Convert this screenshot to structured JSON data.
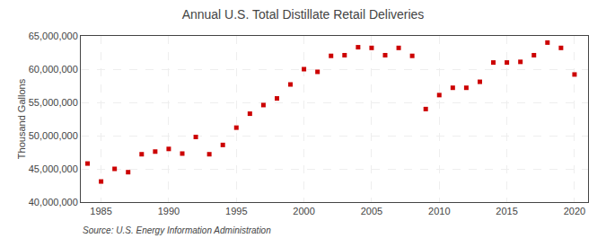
{
  "chart_data": {
    "type": "scatter",
    "title": "Annual U.S. Total Distillate Retail Deliveries",
    "ylabel": "Thousand Gallons",
    "annotations": [
      "Source: U.S. Energy Information Administration"
    ],
    "x": [
      1984,
      1985,
      1986,
      1987,
      1988,
      1989,
      1990,
      1991,
      1992,
      1993,
      1994,
      1995,
      1996,
      1997,
      1998,
      1999,
      2000,
      2001,
      2002,
      2003,
      2004,
      2005,
      2006,
      2007,
      2008,
      2009,
      2010,
      2011,
      2012,
      2013,
      2014,
      2015,
      2016,
      2017,
      2018,
      2019,
      2020
    ],
    "values": [
      45800000,
      43100000,
      45000000,
      44500000,
      47200000,
      47600000,
      48000000,
      47300000,
      49800000,
      47200000,
      48600000,
      51200000,
      53300000,
      54600000,
      55600000,
      57700000,
      60000000,
      59600000,
      62000000,
      62100000,
      63300000,
      63200000,
      62100000,
      63200000,
      62000000,
      54000000,
      56100000,
      57200000,
      57200000,
      58100000,
      61000000,
      61000000,
      61100000,
      62100000,
      64000000,
      63200000,
      59200000
    ],
    "color": "#cc0000",
    "marker": "square",
    "xlim": [
      1983.5,
      2021
    ],
    "xticks": [
      1985,
      1990,
      1995,
      2000,
      2005,
      2010,
      2015,
      2020
    ],
    "ylim": [
      40000000,
      65000000
    ],
    "yticks": [
      {
        "value": 40000000,
        "label": "40,000,000"
      },
      {
        "value": 45000000,
        "label": "45,000,000"
      },
      {
        "value": 50000000,
        "label": "50,000,000"
      },
      {
        "value": 55000000,
        "label": "55,000,000"
      },
      {
        "value": 60000000,
        "label": "60,000,000"
      },
      {
        "value": 65000000,
        "label": "65,000,000"
      }
    ],
    "grid": true
  }
}
